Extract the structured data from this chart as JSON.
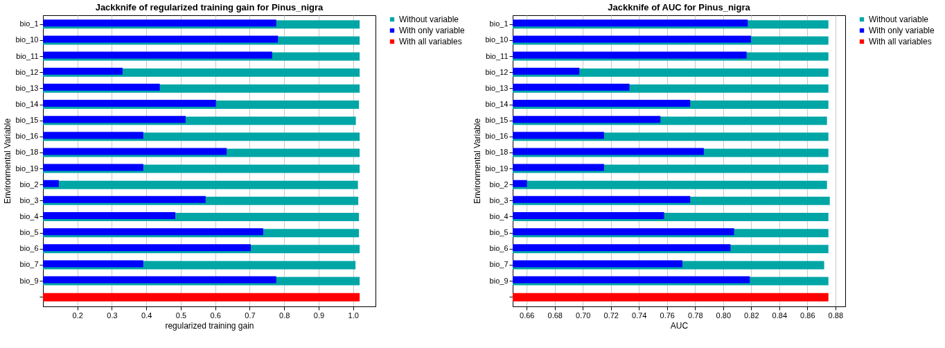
{
  "chart_data": [
    {
      "type": "bar",
      "orientation": "horizontal",
      "title": "Jackknife of regularized training gain for Pinus_nigra",
      "xlabel": "regularized training gain",
      "ylabel": "Environmental Variable",
      "categories": [
        "bio_1",
        "bio_10",
        "bio_11",
        "bio_12",
        "bio_13",
        "bio_14",
        "bio_15",
        "bio_16",
        "bio_18",
        "bio_19",
        "bio_2",
        "bio_3",
        "bio_4",
        "bio_5",
        "bio_6",
        "bio_7",
        "bio_9",
        null
      ],
      "xlim": [
        0.1,
        1.065
      ],
      "xticks": [
        0.2,
        0.3,
        0.4,
        0.5,
        0.6,
        0.7,
        0.8,
        0.9,
        {
          "value": 1,
          "label": "1.0"
        }
      ],
      "grid": "x",
      "legend": "top right",
      "series": [
        {
          "name": "Without variable",
          "color": "#00a6a6",
          "values": [
            1.019,
            1.019,
            1.019,
            1.019,
            1.019,
            1.017,
            1.008,
            1.019,
            1.019,
            1.019,
            1.014,
            1.015,
            1.017,
            1.017,
            1.019,
            1.007,
            1.019,
            null
          ]
        },
        {
          "name": "With only variable",
          "color": "#0000ff",
          "values": [
            0.777,
            0.782,
            0.765,
            0.331,
            0.439,
            0.602,
            0.514,
            0.391,
            0.633,
            0.391,
            0.146,
            0.572,
            0.484,
            0.739,
            0.703,
            0.391,
            0.777,
            null
          ]
        },
        {
          "name": "With all variables",
          "color": "#ff0000",
          "values": [
            null,
            null,
            null,
            null,
            null,
            null,
            null,
            null,
            null,
            null,
            null,
            null,
            null,
            null,
            null,
            null,
            null,
            1.019
          ]
        }
      ]
    },
    {
      "type": "bar",
      "orientation": "horizontal",
      "title": "Jackknife of AUC for Pinus_nigra",
      "xlabel": "AUC",
      "ylabel": "Environmental Variable",
      "categories": [
        "bio_1",
        "bio_10",
        "bio_11",
        "bio_12",
        "bio_13",
        "bio_14",
        "bio_15",
        "bio_16",
        "bio_18",
        "bio_19",
        "bio_2",
        "bio_3",
        "bio_4",
        "bio_5",
        "bio_6",
        "bio_7",
        "bio_9",
        null
      ],
      "xlim": [
        0.65,
        0.887
      ],
      "xticks": [
        0.66,
        0.68,
        {
          "value": 0.7,
          "label": "0.70"
        },
        0.72,
        0.74,
        0.76,
        0.78,
        {
          "value": 0.8,
          "label": "0.80"
        },
        0.82,
        0.84,
        0.86,
        0.88
      ],
      "grid": "x",
      "legend": "top right",
      "series": [
        {
          "name": "Without variable",
          "color": "#00a6a6",
          "values": [
            0.875,
            0.875,
            0.875,
            0.875,
            0.875,
            0.875,
            0.874,
            0.875,
            0.875,
            0.875,
            0.874,
            0.876,
            0.875,
            0.875,
            0.875,
            0.872,
            0.875,
            null
          ]
        },
        {
          "name": "With only variable",
          "color": "#0000ff",
          "values": [
            0.8175,
            0.8198,
            0.8167,
            0.6975,
            0.7332,
            0.7765,
            0.7553,
            0.7151,
            0.7862,
            0.7151,
            0.6602,
            0.7765,
            0.7579,
            0.8078,
            0.8052,
            0.7709,
            0.819,
            null
          ]
        },
        {
          "name": "With all variables",
          "color": "#ff0000",
          "values": [
            null,
            null,
            null,
            null,
            null,
            null,
            null,
            null,
            null,
            null,
            null,
            null,
            null,
            null,
            null,
            null,
            null,
            0.875
          ]
        }
      ]
    }
  ]
}
